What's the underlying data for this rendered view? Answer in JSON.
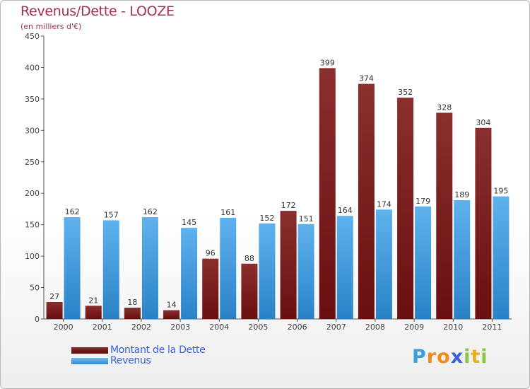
{
  "header": {
    "title": "Revenus/Dette - LOOZE",
    "subtitle": "(en milliers d'€)"
  },
  "colors": {
    "dette": "#6a0f0f",
    "revenus": "#3d9be0",
    "title": "#a0305a",
    "legend_text": "#3a62e0"
  },
  "chart_data": {
    "type": "bar",
    "categories": [
      "2000",
      "2001",
      "2002",
      "2003",
      "2004",
      "2005",
      "2006",
      "2007",
      "2008",
      "2009",
      "2010",
      "2011"
    ],
    "series": [
      {
        "name": "Montant de la Dette",
        "values": [
          27,
          21,
          18,
          14,
          96,
          88,
          172,
          399,
          374,
          352,
          328,
          304
        ]
      },
      {
        "name": "Revenus",
        "values": [
          162,
          157,
          162,
          145,
          161,
          152,
          151,
          164,
          174,
          179,
          189,
          195
        ]
      }
    ],
    "yticks": [
      "0",
      "50",
      "100",
      "150",
      "200",
      "250",
      "300",
      "350",
      "400",
      "450"
    ],
    "ylim": [
      0,
      450
    ],
    "grid": false,
    "legend_position": "bottom-left"
  },
  "logo": {
    "letters": [
      {
        "ch": "P",
        "color": "#3aa0dd"
      },
      {
        "ch": "r",
        "color": "#f08a1c"
      },
      {
        "ch": "o",
        "color": "#f08a1c"
      },
      {
        "ch": "x",
        "color": "#3a62e0"
      },
      {
        "ch": "i",
        "color": "#8cc63f"
      },
      {
        "ch": "t",
        "color": "#e8b020"
      },
      {
        "ch": "i",
        "color": "#8cc63f"
      }
    ]
  }
}
